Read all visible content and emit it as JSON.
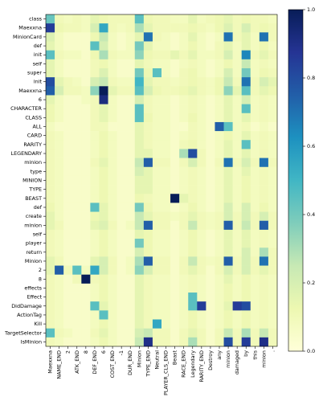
{
  "chart_data": {
    "type": "heatmap",
    "title": "",
    "xlabel": "",
    "ylabel": "",
    "x_labels": [
      "Maexxna",
      "NAME_END",
      "2",
      "ATK_END",
      "8",
      "DEF_END",
      "6",
      "COST_END",
      "-1",
      "DUR_END",
      "Minion",
      "TYPE_END",
      "Neutral",
      "PLAYER_CLS_END",
      "Beast",
      "RACE_END",
      "Legendary",
      "RARITY_END",
      "Destroy",
      "any",
      "minion",
      "damaged",
      "by",
      "this",
      "minion",
      "."
    ],
    "y_labels": [
      "class",
      "Maexxna",
      "MinionCard",
      "def",
      "init",
      "self",
      "super",
      "init",
      "Maexxna",
      "6",
      "CHARACTER",
      "CLASS",
      "ALL",
      "CARD",
      "RARITY",
      "LEGENDARY",
      "minion",
      "type",
      "MINION",
      "TYPE",
      "BEAST",
      "def",
      "create",
      "minion",
      "self",
      "player",
      "return",
      "Minion",
      "2",
      "8",
      "effects",
      "Effect",
      "DidDamage",
      "ActionTag",
      "Kill",
      "TargetSelector",
      "IsMinion"
    ],
    "colorbar": {
      "min": 0.0,
      "max": 1.0,
      "ticks": [
        0.0,
        0.2,
        0.4,
        0.6,
        0.8,
        1.0
      ],
      "tick_labels": [
        "0.0",
        "0.2",
        "0.4",
        "0.6",
        "0.8",
        "1.0"
      ]
    },
    "colormap_stops": [
      "#ffffd9",
      "#edf8b1",
      "#c7e9b4",
      "#7fcdbb",
      "#41b6c4",
      "#1d91c0",
      "#225ea8",
      "#253494",
      "#081d58"
    ],
    "values": [
      [
        0.42,
        0.1,
        0.08,
        0.1,
        0.08,
        0.15,
        0.12,
        0.1,
        0.1,
        0.1,
        0.45,
        0.12,
        0.1,
        0.1,
        0.08,
        0.08,
        0.15,
        0.08,
        0.1,
        0.12,
        0.15,
        0.1,
        0.12,
        0.1,
        0.1,
        0.08
      ],
      [
        0.85,
        0.12,
        0.1,
        0.1,
        0.08,
        0.2,
        0.55,
        0.1,
        0.08,
        0.1,
        0.3,
        0.15,
        0.1,
        0.1,
        0.1,
        0.1,
        0.12,
        0.1,
        0.08,
        0.12,
        0.18,
        0.1,
        0.2,
        0.1,
        0.12,
        0.1
      ],
      [
        0.18,
        0.08,
        0.05,
        0.05,
        0.05,
        0.12,
        0.25,
        0.08,
        0.05,
        0.08,
        0.15,
        0.7,
        0.1,
        0.08,
        0.05,
        0.08,
        0.15,
        0.08,
        0.05,
        0.08,
        0.7,
        0.1,
        0.15,
        0.08,
        0.7,
        0.1
      ],
      [
        0.15,
        0.08,
        0.05,
        0.05,
        0.05,
        0.45,
        0.2,
        0.08,
        0.05,
        0.08,
        0.4,
        0.15,
        0.08,
        0.08,
        0.05,
        0.08,
        0.12,
        0.08,
        0.05,
        0.1,
        0.15,
        0.08,
        0.15,
        0.08,
        0.12,
        0.08
      ],
      [
        0.45,
        0.1,
        0.08,
        0.08,
        0.05,
        0.12,
        0.3,
        0.1,
        0.08,
        0.08,
        0.35,
        0.12,
        0.1,
        0.1,
        0.15,
        0.1,
        0.15,
        0.08,
        0.08,
        0.1,
        0.2,
        0.08,
        0.65,
        0.1,
        0.15,
        0.1
      ],
      [
        0.15,
        0.08,
        0.05,
        0.05,
        0.05,
        0.1,
        0.12,
        0.08,
        0.05,
        0.05,
        0.15,
        0.1,
        0.08,
        0.08,
        0.05,
        0.08,
        0.1,
        0.08,
        0.05,
        0.08,
        0.12,
        0.08,
        0.25,
        0.08,
        0.1,
        0.08
      ],
      [
        0.15,
        0.08,
        0.05,
        0.05,
        0.05,
        0.1,
        0.18,
        0.08,
        0.05,
        0.05,
        0.4,
        0.12,
        0.45,
        0.08,
        0.05,
        0.1,
        0.12,
        0.08,
        0.05,
        0.08,
        0.2,
        0.08,
        0.4,
        0.08,
        0.12,
        0.1
      ],
      [
        0.8,
        0.15,
        0.1,
        0.08,
        0.05,
        0.2,
        0.25,
        0.1,
        0.08,
        0.08,
        0.5,
        0.15,
        0.1,
        0.1,
        0.08,
        0.1,
        0.12,
        0.1,
        0.08,
        0.12,
        0.25,
        0.1,
        0.7,
        0.1,
        0.2,
        0.15
      ],
      [
        0.75,
        0.2,
        0.1,
        0.1,
        0.08,
        0.35,
        1.0,
        0.15,
        0.1,
        0.1,
        0.45,
        0.2,
        0.12,
        0.1,
        0.1,
        0.12,
        0.15,
        0.1,
        0.08,
        0.12,
        0.35,
        0.15,
        0.45,
        0.1,
        0.15,
        0.12
      ],
      [
        0.15,
        0.08,
        0.05,
        0.05,
        0.08,
        0.1,
        0.92,
        0.08,
        0.05,
        0.05,
        0.2,
        0.1,
        0.08,
        0.08,
        0.05,
        0.08,
        0.1,
        0.08,
        0.05,
        0.08,
        0.15,
        0.08,
        0.2,
        0.08,
        0.1,
        0.08
      ],
      [
        0.12,
        0.08,
        0.05,
        0.05,
        0.05,
        0.1,
        0.15,
        0.08,
        0.05,
        0.05,
        0.45,
        0.1,
        0.08,
        0.08,
        0.05,
        0.08,
        0.1,
        0.08,
        0.05,
        0.08,
        0.15,
        0.08,
        0.45,
        0.08,
        0.1,
        0.08
      ],
      [
        0.12,
        0.08,
        0.05,
        0.05,
        0.05,
        0.1,
        0.15,
        0.08,
        0.05,
        0.05,
        0.45,
        0.12,
        0.08,
        0.08,
        0.05,
        0.08,
        0.12,
        0.08,
        0.05,
        0.08,
        0.15,
        0.08,
        0.15,
        0.08,
        0.1,
        0.08
      ],
      [
        0.08,
        0.05,
        0.05,
        0.05,
        0.05,
        0.1,
        0.1,
        0.05,
        0.05,
        0.05,
        0.15,
        0.1,
        0.08,
        0.08,
        0.05,
        0.05,
        0.1,
        0.08,
        0.05,
        0.75,
        0.45,
        0.08,
        0.1,
        0.05,
        0.08,
        0.05
      ],
      [
        0.1,
        0.08,
        0.05,
        0.05,
        0.05,
        0.08,
        0.12,
        0.08,
        0.05,
        0.05,
        0.15,
        0.1,
        0.08,
        0.08,
        0.05,
        0.08,
        0.1,
        0.08,
        0.05,
        0.08,
        0.12,
        0.08,
        0.15,
        0.08,
        0.1,
        0.08
      ],
      [
        0.1,
        0.08,
        0.05,
        0.05,
        0.05,
        0.08,
        0.12,
        0.08,
        0.05,
        0.05,
        0.15,
        0.1,
        0.08,
        0.08,
        0.05,
        0.1,
        0.12,
        0.08,
        0.05,
        0.08,
        0.15,
        0.08,
        0.45,
        0.08,
        0.1,
        0.08
      ],
      [
        0.1,
        0.08,
        0.05,
        0.05,
        0.05,
        0.08,
        0.12,
        0.08,
        0.05,
        0.05,
        0.15,
        0.15,
        0.08,
        0.08,
        0.05,
        0.3,
        0.8,
        0.1,
        0.05,
        0.08,
        0.15,
        0.08,
        0.15,
        0.08,
        0.1,
        0.08
      ],
      [
        0.1,
        0.08,
        0.05,
        0.05,
        0.05,
        0.1,
        0.15,
        0.08,
        0.05,
        0.05,
        0.25,
        0.75,
        0.1,
        0.1,
        0.05,
        0.1,
        0.2,
        0.1,
        0.05,
        0.1,
        0.7,
        0.1,
        0.2,
        0.1,
        0.7,
        0.1
      ],
      [
        0.1,
        0.08,
        0.05,
        0.05,
        0.05,
        0.08,
        0.12,
        0.08,
        0.05,
        0.05,
        0.2,
        0.15,
        0.08,
        0.08,
        0.05,
        0.08,
        0.1,
        0.08,
        0.05,
        0.08,
        0.15,
        0.08,
        0.15,
        0.08,
        0.1,
        0.08
      ],
      [
        0.1,
        0.08,
        0.05,
        0.05,
        0.05,
        0.08,
        0.12,
        0.08,
        0.05,
        0.05,
        0.15,
        0.15,
        0.08,
        0.08,
        0.05,
        0.08,
        0.1,
        0.08,
        0.05,
        0.08,
        0.15,
        0.08,
        0.12,
        0.08,
        0.1,
        0.08
      ],
      [
        0.1,
        0.08,
        0.05,
        0.05,
        0.05,
        0.08,
        0.12,
        0.08,
        0.05,
        0.05,
        0.15,
        0.15,
        0.08,
        0.08,
        0.05,
        0.08,
        0.1,
        0.08,
        0.05,
        0.08,
        0.15,
        0.08,
        0.12,
        0.08,
        0.1,
        0.08
      ],
      [
        0.1,
        0.08,
        0.05,
        0.05,
        0.05,
        0.08,
        0.12,
        0.08,
        0.05,
        0.05,
        0.12,
        0.1,
        0.08,
        0.08,
        1.0,
        0.15,
        0.1,
        0.08,
        0.05,
        0.08,
        0.15,
        0.08,
        0.12,
        0.08,
        0.1,
        0.08
      ],
      [
        0.12,
        0.08,
        0.05,
        0.05,
        0.05,
        0.45,
        0.15,
        0.08,
        0.05,
        0.05,
        0.4,
        0.12,
        0.08,
        0.08,
        0.05,
        0.08,
        0.12,
        0.08,
        0.05,
        0.08,
        0.2,
        0.08,
        0.2,
        0.08,
        0.12,
        0.08
      ],
      [
        0.15,
        0.08,
        0.05,
        0.05,
        0.05,
        0.12,
        0.15,
        0.08,
        0.05,
        0.05,
        0.25,
        0.15,
        0.1,
        0.1,
        0.08,
        0.1,
        0.15,
        0.1,
        0.08,
        0.1,
        0.2,
        0.1,
        0.2,
        0.1,
        0.2,
        0.1
      ],
      [
        0.15,
        0.1,
        0.05,
        0.05,
        0.05,
        0.15,
        0.18,
        0.1,
        0.05,
        0.08,
        0.25,
        0.75,
        0.1,
        0.1,
        0.05,
        0.1,
        0.25,
        0.1,
        0.08,
        0.1,
        0.75,
        0.1,
        0.25,
        0.1,
        0.75,
        0.1
      ],
      [
        0.1,
        0.08,
        0.05,
        0.05,
        0.05,
        0.08,
        0.12,
        0.08,
        0.05,
        0.05,
        0.15,
        0.12,
        0.08,
        0.08,
        0.05,
        0.08,
        0.12,
        0.08,
        0.05,
        0.08,
        0.15,
        0.08,
        0.15,
        0.08,
        0.1,
        0.08
      ],
      [
        0.1,
        0.08,
        0.05,
        0.05,
        0.05,
        0.08,
        0.12,
        0.08,
        0.05,
        0.05,
        0.4,
        0.12,
        0.08,
        0.08,
        0.05,
        0.08,
        0.12,
        0.08,
        0.05,
        0.08,
        0.15,
        0.08,
        0.15,
        0.08,
        0.1,
        0.08
      ],
      [
        0.1,
        0.08,
        0.05,
        0.05,
        0.05,
        0.08,
        0.12,
        0.08,
        0.05,
        0.05,
        0.2,
        0.12,
        0.08,
        0.08,
        0.05,
        0.08,
        0.12,
        0.08,
        0.05,
        0.08,
        0.15,
        0.08,
        0.2,
        0.08,
        0.3,
        0.1
      ],
      [
        0.15,
        0.1,
        0.05,
        0.05,
        0.05,
        0.15,
        0.2,
        0.1,
        0.05,
        0.08,
        0.3,
        0.75,
        0.1,
        0.1,
        0.05,
        0.1,
        0.25,
        0.1,
        0.08,
        0.1,
        0.75,
        0.1,
        0.2,
        0.1,
        0.7,
        0.1
      ],
      [
        0.15,
        0.75,
        0.1,
        0.45,
        0.08,
        0.55,
        0.2,
        0.1,
        0.05,
        0.08,
        0.35,
        0.2,
        0.1,
        0.1,
        0.05,
        0.1,
        0.15,
        0.1,
        0.05,
        0.1,
        0.2,
        0.1,
        0.2,
        0.1,
        0.15,
        0.1
      ],
      [
        0.1,
        0.08,
        0.05,
        0.1,
        1.0,
        0.1,
        0.12,
        0.08,
        0.05,
        0.05,
        0.15,
        0.1,
        0.08,
        0.08,
        0.05,
        0.08,
        0.1,
        0.08,
        0.05,
        0.08,
        0.15,
        0.08,
        0.12,
        0.08,
        0.1,
        0.08
      ],
      [
        0.1,
        0.08,
        0.05,
        0.05,
        0.05,
        0.08,
        0.12,
        0.08,
        0.05,
        0.05,
        0.15,
        0.1,
        0.08,
        0.08,
        0.05,
        0.08,
        0.1,
        0.08,
        0.05,
        0.08,
        0.12,
        0.08,
        0.12,
        0.08,
        0.1,
        0.08
      ],
      [
        0.1,
        0.08,
        0.05,
        0.05,
        0.05,
        0.08,
        0.12,
        0.08,
        0.05,
        0.05,
        0.15,
        0.1,
        0.08,
        0.08,
        0.05,
        0.08,
        0.45,
        0.08,
        0.05,
        0.08,
        0.12,
        0.08,
        0.12,
        0.08,
        0.1,
        0.08
      ],
      [
        0.1,
        0.08,
        0.05,
        0.05,
        0.05,
        0.45,
        0.15,
        0.08,
        0.05,
        0.05,
        0.15,
        0.1,
        0.08,
        0.08,
        0.05,
        0.08,
        0.45,
        0.85,
        0.05,
        0.08,
        0.15,
        0.85,
        0.8,
        0.08,
        0.1,
        0.08
      ],
      [
        0.1,
        0.08,
        0.05,
        0.05,
        0.05,
        0.08,
        0.45,
        0.08,
        0.05,
        0.05,
        0.15,
        0.1,
        0.08,
        0.08,
        0.05,
        0.08,
        0.12,
        0.08,
        0.05,
        0.08,
        0.12,
        0.08,
        0.12,
        0.08,
        0.1,
        0.08
      ],
      [
        0.1,
        0.08,
        0.05,
        0.05,
        0.05,
        0.08,
        0.12,
        0.08,
        0.05,
        0.05,
        0.15,
        0.1,
        0.55,
        0.08,
        0.05,
        0.08,
        0.12,
        0.08,
        0.05,
        0.08,
        0.12,
        0.08,
        0.12,
        0.08,
        0.1,
        0.08
      ],
      [
        0.45,
        0.1,
        0.08,
        0.05,
        0.05,
        0.1,
        0.15,
        0.08,
        0.05,
        0.05,
        0.2,
        0.25,
        0.1,
        0.1,
        0.05,
        0.1,
        0.15,
        0.1,
        0.05,
        0.1,
        0.25,
        0.1,
        0.3,
        0.1,
        0.25,
        0.1
      ],
      [
        0.1,
        0.08,
        0.05,
        0.05,
        0.05,
        0.08,
        0.12,
        0.08,
        0.05,
        0.05,
        0.25,
        0.9,
        0.1,
        0.1,
        0.05,
        0.1,
        0.3,
        0.1,
        0.05,
        0.1,
        0.8,
        0.1,
        0.85,
        0.1,
        0.9,
        0.1
      ]
    ]
  }
}
